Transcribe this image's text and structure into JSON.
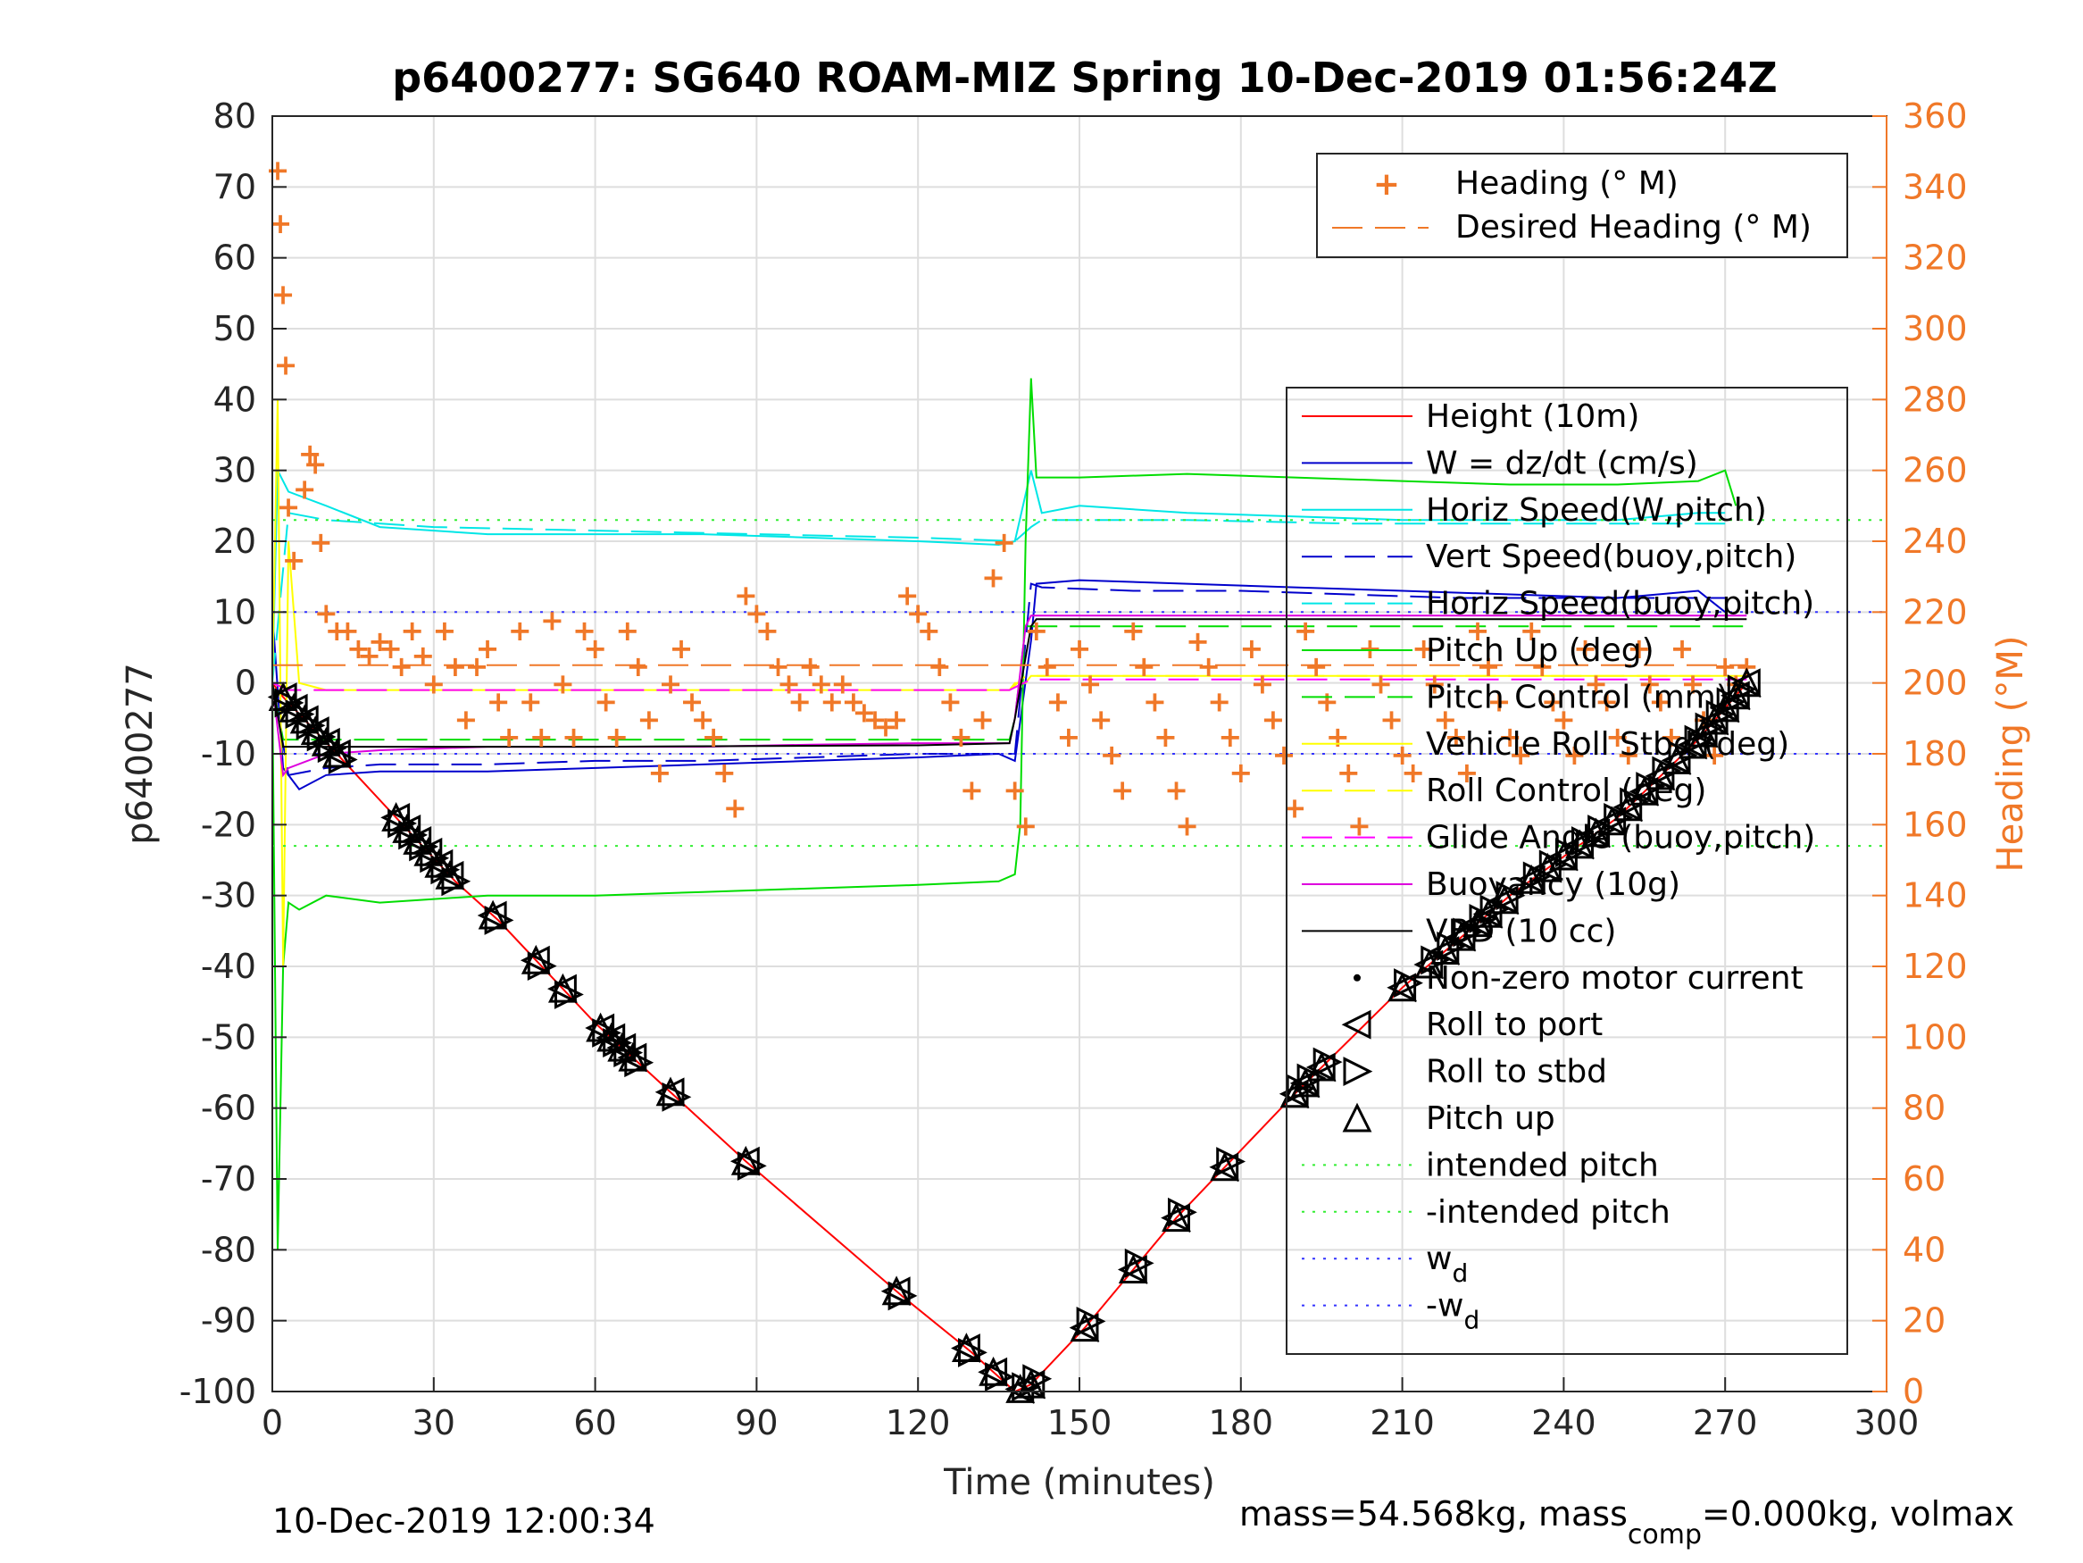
{
  "chart_data": {
    "type": "line",
    "title": "p6400277: SG640 ROAM-MIZ Spring 10-Dec-2019 01:56:24Z",
    "xlabel": "Time (minutes)",
    "ylabel_left": "p6400277",
    "ylabel_right": "Heading (°M)",
    "xlim": [
      0,
      300
    ],
    "ylim_left": [
      -100,
      80
    ],
    "ylim_right": [
      0,
      360
    ],
    "x_ticks": [
      "0",
      "30",
      "60",
      "90",
      "120",
      "150",
      "180",
      "210",
      "240",
      "270",
      "300"
    ],
    "y_ticks_left": [
      "80",
      "70",
      "60",
      "50",
      "40",
      "30",
      "20",
      "10",
      "0",
      "-10",
      "-20",
      "-30",
      "-40",
      "-50",
      "-60",
      "-70",
      "-80",
      "-90",
      "-100"
    ],
    "y_ticks_right": [
      "360",
      "340",
      "320",
      "300",
      "280",
      "260",
      "240",
      "220",
      "200",
      "180",
      "160",
      "140",
      "120",
      "100",
      "80",
      "60",
      "40",
      "20",
      "0"
    ],
    "grid": true,
    "colors": {
      "height": "#ff0000",
      "w": "#0000cc",
      "horiz_speed": "#00e6e6",
      "pitch": "#00dd00",
      "roll": "#ffff00",
      "glide": "#ff00ff",
      "buoyancy": "#dd00dd",
      "vbd": "#000000",
      "heading": "#f07828",
      "intended_pitch": "#33ee33",
      "wd": "#3333ff"
    },
    "legend_heading": {
      "placement": "top-right",
      "entries": [
        "Heading (° M)",
        "Desired Heading (° M)"
      ]
    },
    "legend_main": {
      "placement": "right",
      "entries": [
        "Height (10m)",
        "W = dz/dt (cm/s)",
        "Horiz Speed(W,pitch)",
        "Vert Speed(buoy,pitch)",
        "Horiz Speed(buoy,pitch)",
        "Pitch Up (deg)",
        "Pitch Control (mm)",
        "Vehicle Roll Stbd (deg)",
        "Roll Control (deg)",
        "Glide Angle (buoy,pitch)",
        "Buoyancy (10g)",
        "VBD (10 cc)",
        "Non-zero motor current",
        "Roll to port",
        "Roll to stbd",
        "Pitch up",
        "intended pitch",
        "-intended pitch",
        "w",
        "-w"
      ],
      "subscript": "d"
    },
    "series": [
      {
        "name": "Height (10m)",
        "x": [
          0,
          2,
          12,
          34,
          42,
          60,
          88,
          117,
          130,
          138,
          141,
          151,
          168,
          190,
          210,
          230,
          250,
          265,
          274
        ],
        "values": [
          0,
          -2,
          -10,
          -28,
          -33.5,
          -48,
          -67.5,
          -86.5,
          -94.5,
          -100,
          -99,
          -91,
          -75.5,
          -58,
          -43,
          -30,
          -19,
          -8,
          0
        ]
      },
      {
        "name": "W = dz/dt (cm/s)",
        "x": [
          0,
          2,
          5,
          10,
          20,
          40,
          60,
          80,
          100,
          120,
          135,
          138,
          141,
          142,
          150,
          170,
          190,
          210,
          230,
          250,
          265,
          270
        ],
        "values": [
          10,
          -12,
          -15,
          -13,
          -12.5,
          -12.5,
          -12,
          -11.5,
          -11,
          -10.5,
          -10,
          -11,
          6,
          14,
          14.5,
          14,
          13.5,
          13,
          12.5,
          12,
          13,
          10
        ]
      },
      {
        "name": "Horiz Speed(W,pitch)",
        "x": [
          0,
          1,
          3,
          10,
          20,
          40,
          60,
          80,
          100,
          120,
          135,
          138,
          141,
          143,
          150,
          170,
          190,
          210,
          230,
          250,
          265,
          270
        ],
        "values": [
          0,
          30,
          27,
          25,
          22,
          21,
          21,
          21,
          20.5,
          20,
          19.5,
          20,
          30,
          24,
          25,
          24,
          23.5,
          23,
          23,
          23,
          24,
          24
        ]
      },
      {
        "name": "Vert Speed(buoy,pitch)",
        "x": [
          0,
          3,
          10,
          20,
          40,
          60,
          80,
          100,
          120,
          138,
          141,
          143,
          160,
          180,
          200,
          220,
          250,
          270
        ],
        "values": [
          0,
          -13,
          -12,
          -11.5,
          -11.5,
          -11,
          -11,
          -10.5,
          -10,
          -10,
          14,
          13.5,
          13,
          13,
          12.5,
          12,
          12,
          12
        ]
      },
      {
        "name": "Horiz Speed(buoy,pitch)",
        "x": [
          0,
          3,
          10,
          30,
          60,
          90,
          120,
          138,
          141,
          143,
          170,
          200,
          230,
          270
        ],
        "values": [
          0,
          24,
          23,
          22,
          21.5,
          21,
          20.5,
          20,
          22,
          23,
          23,
          22.5,
          22.5,
          22.5
        ]
      },
      {
        "name": "Pitch Up (deg)",
        "x": [
          0,
          1,
          2,
          3,
          5,
          10,
          20,
          40,
          60,
          80,
          100,
          120,
          135,
          138,
          139,
          140,
          141,
          142,
          150,
          170,
          190,
          210,
          230,
          250,
          265,
          270,
          272
        ],
        "values": [
          0,
          -80,
          -40,
          -31,
          -32,
          -30,
          -31,
          -30,
          -30,
          -29.5,
          -29,
          -28.5,
          -28,
          -27,
          -20,
          20,
          43,
          29,
          29,
          29.5,
          29,
          28.5,
          28,
          28,
          28.5,
          30,
          25
        ]
      },
      {
        "name": "Pitch Control (mm)",
        "x": [
          0,
          2,
          3,
          60,
          137,
          138,
          140,
          141,
          274
        ],
        "values": [
          0,
          -8,
          -8,
          -8,
          -8,
          -5,
          8,
          8,
          8
        ]
      },
      {
        "name": "Vehicle Roll Stbd (deg)",
        "x": [
          0,
          1,
          2,
          3,
          5,
          10,
          20,
          40,
          60,
          80,
          100,
          120,
          137,
          138,
          140,
          141,
          160,
          180,
          200,
          220,
          240,
          260,
          270
        ],
        "values": [
          0,
          40,
          -40,
          20,
          0,
          -1,
          -1,
          -1,
          -1,
          -1,
          -1,
          -1,
          -1,
          0,
          0,
          1,
          1,
          1,
          1,
          1,
          1,
          1,
          1
        ]
      },
      {
        "name": "Roll Control (deg)",
        "x": [
          0,
          3,
          137,
          140,
          274
        ],
        "values": [
          0,
          -1,
          -1,
          1,
          1
        ]
      },
      {
        "name": "Glide Angle (buoy,pitch)",
        "x": [
          0,
          3,
          10,
          137,
          141,
          274
        ],
        "values": [
          0,
          -1,
          -1,
          -1,
          0.5,
          0.5
        ]
      },
      {
        "name": "Buoyancy (10g)",
        "x": [
          0,
          2,
          3,
          10,
          20,
          40,
          60,
          80,
          100,
          120,
          137,
          138,
          140,
          141,
          180,
          220,
          260,
          274
        ],
        "values": [
          0,
          -13,
          -12,
          -10,
          -9.5,
          -9,
          -9,
          -9,
          -8.7,
          -8.5,
          -8.5,
          -5,
          8,
          9.5,
          9.5,
          9.5,
          9.5,
          9.5
        ]
      },
      {
        "name": "VBD (10 cc)",
        "x": [
          0,
          2,
          3,
          10,
          60,
          120,
          137,
          138,
          141,
          142,
          180,
          240,
          274
        ],
        "values": [
          0,
          -9,
          -9,
          -9,
          -9,
          -8.8,
          -8.5,
          -5,
          8,
          9,
          9,
          9,
          9
        ]
      },
      {
        "name": "intended pitch",
        "x": [
          0,
          300
        ],
        "values": [
          23,
          23
        ]
      },
      {
        "name": "-intended pitch",
        "x": [
          0,
          300
        ],
        "values": [
          -23,
          -23
        ]
      },
      {
        "name": "w",
        "x": [
          0,
          300
        ],
        "values": [
          10,
          10
        ]
      },
      {
        "name": "-w",
        "x": [
          0,
          300
        ],
        "values": [
          -10,
          -10
        ]
      },
      {
        "name": "Heading (° M)",
        "axis": "right",
        "x": [
          1,
          1.5,
          2,
          2.5,
          3,
          4,
          6,
          7,
          8,
          9,
          10,
          12,
          14,
          16,
          18,
          20,
          22,
          24,
          26,
          28,
          30,
          32,
          34,
          36,
          38,
          40,
          42,
          44,
          46,
          48,
          50,
          52,
          54,
          56,
          58,
          60,
          62,
          64,
          66,
          68,
          70,
          72,
          74,
          76,
          78,
          80,
          82,
          84,
          86,
          88,
          90,
          92,
          94,
          96,
          98,
          100,
          102,
          104,
          106,
          108,
          110,
          112,
          114,
          116,
          118,
          120,
          122,
          124,
          126,
          128,
          130,
          132,
          134,
          136,
          138,
          140,
          142,
          144,
          146,
          148,
          150,
          152,
          154,
          156,
          158,
          160,
          162,
          164,
          166,
          168,
          170,
          172,
          174,
          176,
          178,
          180,
          182,
          184,
          186,
          188,
          190,
          192,
          194,
          196,
          198,
          200,
          202,
          204,
          206,
          208,
          210,
          212,
          214,
          216,
          218,
          220,
          222,
          224,
          226,
          228,
          230,
          232,
          234,
          236,
          238,
          240,
          242,
          244,
          246,
          248,
          250,
          252,
          254,
          256,
          258,
          260,
          262,
          264,
          266,
          268,
          270,
          272,
          274
        ],
        "values": [
          345,
          330,
          310,
          290,
          250,
          235,
          255,
          265,
          262,
          240,
          220,
          215,
          215,
          210,
          208,
          212,
          210,
          205,
          215,
          208,
          200,
          215,
          205,
          190,
          205,
          210,
          195,
          185,
          215,
          195,
          185,
          218,
          200,
          185,
          215,
          210,
          195,
          185,
          215,
          205,
          190,
          175,
          200,
          210,
          195,
          190,
          185,
          175,
          165,
          225,
          220,
          215,
          205,
          200,
          195,
          205,
          200,
          195,
          200,
          195,
          192,
          190,
          188,
          190,
          225,
          220,
          215,
          205,
          195,
          185,
          170,
          190,
          230,
          240,
          170,
          160,
          215,
          205,
          195,
          185,
          210,
          200,
          190,
          180,
          170,
          215,
          205,
          195,
          185,
          170,
          160,
          212,
          205,
          195,
          185,
          175,
          210,
          200,
          190,
          180,
          165,
          215,
          205,
          195,
          185,
          175,
          160,
          210,
          200,
          190,
          180,
          175,
          210,
          200,
          190,
          185,
          175,
          215,
          205,
          195,
          185,
          180,
          215,
          205,
          195,
          190,
          180,
          210,
          200,
          195,
          185,
          180,
          210,
          200,
          195,
          185,
          210,
          200,
          190,
          180,
          205,
          200,
          205
        ]
      },
      {
        "name": "Desired Heading (° M)",
        "axis": "right",
        "x": [
          0,
          274
        ],
        "values": [
          205,
          205
        ]
      }
    ],
    "markers": {
      "roll_to_port_x": [
        2,
        4,
        6,
        8,
        10,
        12,
        23,
        25,
        27,
        29,
        31,
        33,
        41,
        49,
        54,
        61,
        63,
        65,
        67,
        74,
        88,
        116,
        129,
        134,
        139,
        141,
        151,
        160,
        168,
        177,
        190,
        192,
        195,
        210,
        215,
        218,
        221,
        224,
        226,
        229,
        234,
        237,
        240,
        243,
        246,
        249,
        252,
        255,
        258,
        261,
        264,
        266,
        268,
        270,
        272,
        274
      ],
      "roll_to_stbd_x": [
        3,
        5,
        7,
        9,
        11,
        13,
        24,
        26,
        28,
        30,
        32,
        34,
        42,
        50,
        55,
        62,
        64,
        66,
        68,
        75,
        89,
        117,
        130,
        135,
        140,
        142,
        152,
        161,
        169,
        178,
        191,
        193,
        196,
        211,
        216,
        219,
        222,
        225,
        227,
        230,
        235,
        238,
        241,
        244,
        247,
        250,
        253,
        256,
        259,
        262,
        265,
        267,
        269,
        271,
        273
      ]
    }
  },
  "footer": {
    "timestamp": "10-Dec-2019 12:00:34",
    "mass_text": "mass=54.568kg, mass",
    "mass_sub": "comp",
    "mass_tail": "=0.000kg, volmax"
  }
}
